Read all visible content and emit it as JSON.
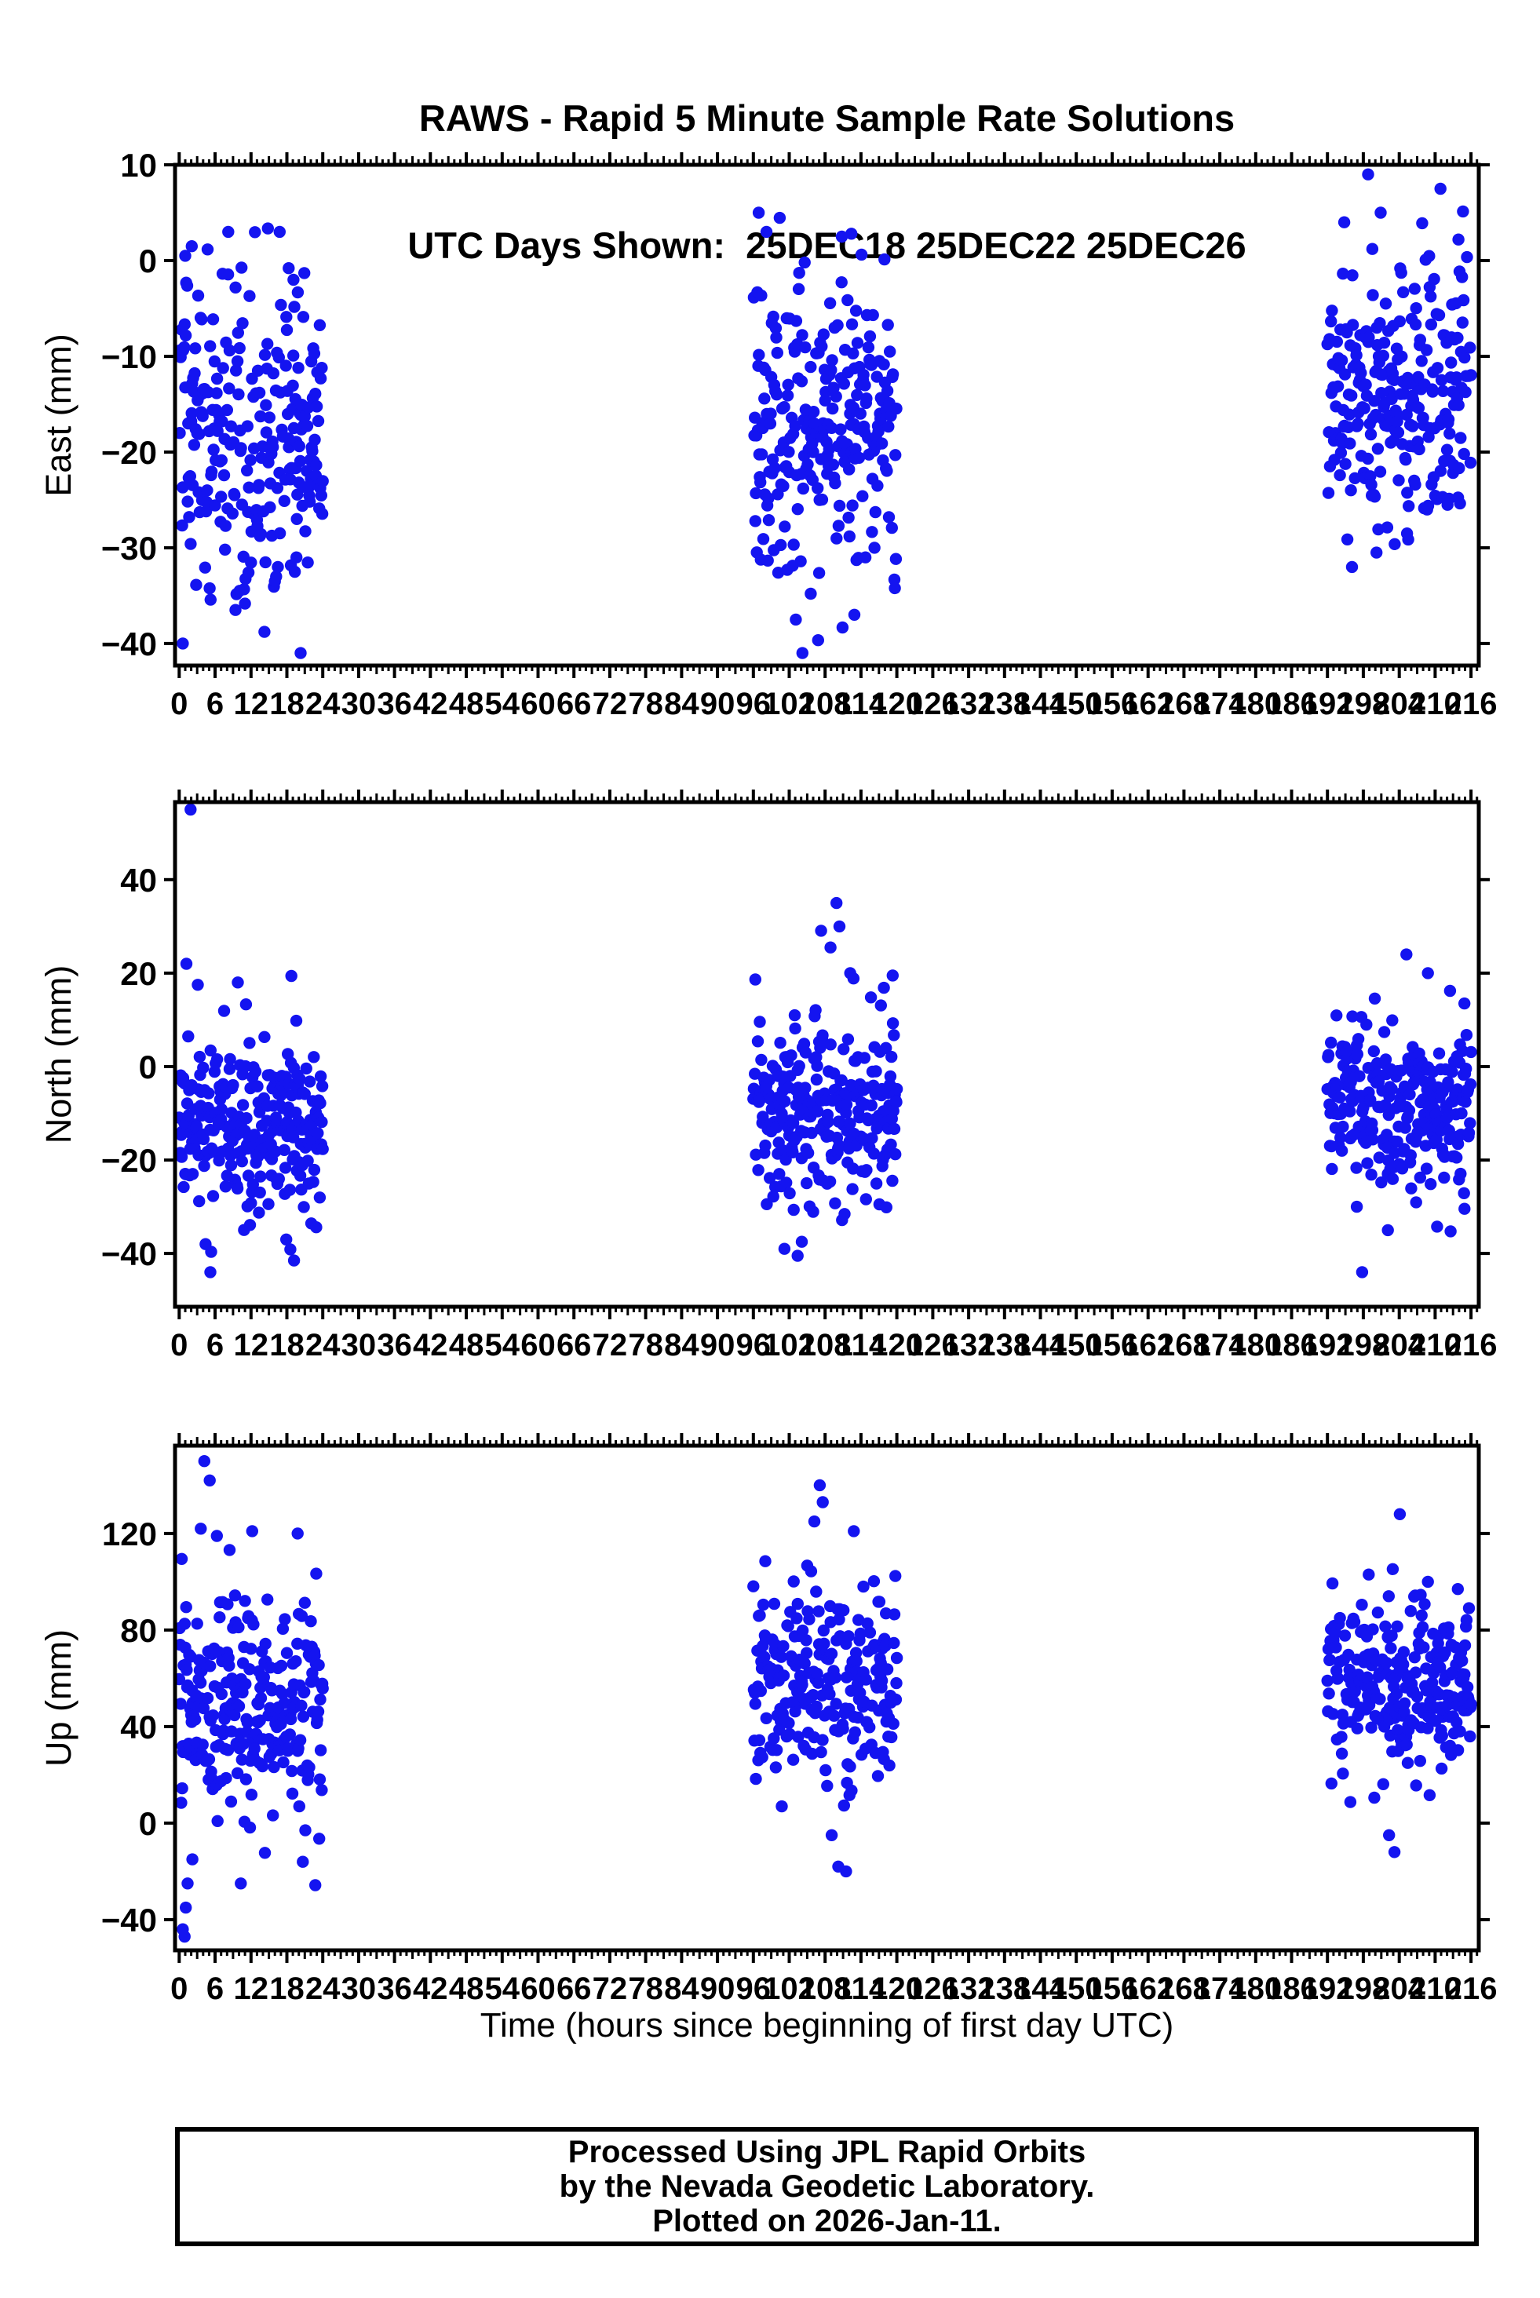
{
  "title": {
    "line1": "RAWS - Rapid 5 Minute Sample Rate Solutions",
    "line2": "UTC Days Shown:  25DEC18 25DEC22 25DEC26"
  },
  "footer": {
    "line1": "Processed Using JPL Rapid Orbits",
    "line2": "by the Nevada Geodetic Laboratory.",
    "line3": "Plotted on 2026-Jan-11."
  },
  "colors": {
    "dot": "#1414f0",
    "frame": "#000000",
    "background": "#ffffff"
  },
  "chart_data": {
    "type": "scatter",
    "station": "RAWS",
    "utc_days_shown": [
      "25DEC18",
      "25DEC22",
      "25DEC26"
    ],
    "xlabel": "Time (hours since beginning of first day UTC)",
    "x_axis": {
      "range": [
        -0.7,
        217.3
      ],
      "major_tick_step": 6,
      "mid_tick_step": 3,
      "minor_tick_step": 1,
      "tick_labels": [
        "0",
        "6",
        "12",
        "18",
        "24",
        "30",
        "36",
        "42",
        "48",
        "54",
        "60",
        "66",
        "72",
        "78",
        "84",
        "90",
        "96",
        "102",
        "108",
        "114",
        "120",
        "126",
        "132",
        "138",
        "144",
        "150",
        "156",
        "162",
        "168",
        "174",
        "180",
        "186",
        "192",
        "198",
        "204",
        "210",
        "216"
      ],
      "tick_values": [
        0,
        6,
        12,
        18,
        24,
        30,
        36,
        42,
        48,
        54,
        60,
        66,
        72,
        78,
        84,
        90,
        96,
        102,
        108,
        114,
        120,
        126,
        132,
        138,
        144,
        150,
        156,
        162,
        168,
        174,
        180,
        186,
        192,
        198,
        204,
        210,
        216
      ]
    },
    "legend": "none",
    "grid": false,
    "marker": {
      "shape": "circle",
      "radius_px": 7.7
    },
    "subplots": [
      {
        "name": "east",
        "ylabel": "East (mm)",
        "ylim": [
          -42.3,
          10
        ],
        "ytick_values": [
          10,
          0,
          -10,
          -20,
          -30,
          -40
        ],
        "ytick_labels": [
          "10",
          "0",
          "−10",
          "−20",
          "−30",
          "−40"
        ],
        "clusters": [
          {
            "x_start": 0,
            "x_end": 24,
            "seed": 11,
            "mean": -18.5,
            "std": 8.5,
            "clamp": [
              -41,
              4
            ],
            "outliers": [
              [
                1.0,
                0.5
              ],
              [
                2.1,
                1.5
              ],
              [
                8.2,
                3
              ],
              [
                16.8,
                3
              ],
              [
                18.3,
                -0.8
              ],
              [
                19.1,
                -2
              ],
              [
                0.6,
                -40
              ],
              [
                20.3,
                -41
              ],
              [
                9.4,
                -36.5
              ],
              [
                10.1,
                -34.5
              ],
              [
                16.2,
                -33
              ],
              [
                19.6,
                -31
              ]
            ]
          },
          {
            "x_start": 96,
            "x_end": 120,
            "seed": 12,
            "mean": -17.5,
            "std": 8,
            "clamp": [
              -41,
              5
            ],
            "outliers": [
              [
                96.9,
                5
              ],
              [
                98.2,
                3
              ],
              [
                110.8,
                2.5
              ],
              [
                112.4,
                2.8
              ],
              [
                104.2,
                -41
              ],
              [
                103.1,
                -37.5
              ],
              [
                112.9,
                -37
              ],
              [
                105.6,
                -34.8
              ]
            ]
          },
          {
            "x_start": 192,
            "x_end": 216,
            "seed": 13,
            "mean": -14.5,
            "std": 6.8,
            "clamp": [
              -32,
              9
            ],
            "outliers": [
              [
                198.8,
                9
              ],
              [
                210.9,
                7.5
              ],
              [
                194.8,
                4
              ],
              [
                200.9,
                5
              ],
              [
                213.9,
                2.2
              ],
              [
                196.1,
                -32
              ],
              [
                200.2,
                -30.5
              ],
              [
                205.3,
                -28.5
              ]
            ]
          }
        ]
      },
      {
        "name": "north",
        "ylabel": "North (mm)",
        "ylim": [
          -51.4,
          56.6
        ],
        "ytick_values": [
          40,
          20,
          0,
          -20,
          -40
        ],
        "ytick_labels": [
          "40",
          "20",
          "0",
          "−20",
          "−40"
        ],
        "clusters": [
          {
            "x_start": 0,
            "x_end": 24,
            "seed": 21,
            "mean": -12,
            "std": 9.5,
            "clamp": [
              -44,
              22
            ],
            "outliers": [
              [
                1.9,
                55
              ],
              [
                1.2,
                22
              ],
              [
                3.1,
                17.5
              ],
              [
                9.8,
                18
              ],
              [
                4.4,
                -38
              ],
              [
                5.2,
                -44
              ],
              [
                17.9,
                -37
              ],
              [
                19.2,
                -41.5
              ]
            ]
          },
          {
            "x_start": 96,
            "x_end": 120,
            "seed": 22,
            "mean": -10,
            "std": 10,
            "clamp": [
              -41,
              30
            ],
            "outliers": [
              [
                109.9,
                35
              ],
              [
                110.4,
                30
              ],
              [
                108.9,
                25.5
              ],
              [
                112.2,
                20
              ],
              [
                119.3,
                19.5
              ],
              [
                101.2,
                -39
              ],
              [
                103.4,
                -40.5
              ],
              [
                104.1,
                -37.5
              ]
            ]
          },
          {
            "x_start": 192,
            "x_end": 216,
            "seed": 23,
            "mean": -8.5,
            "std": 8.5,
            "clamp": [
              -40,
              24
            ],
            "outliers": [
              [
                205.2,
                24
              ],
              [
                208.8,
                20
              ],
              [
                214.9,
                13.5
              ],
              [
                197.8,
                -44
              ],
              [
                202.1,
                -35
              ],
              [
                196.9,
                -30
              ]
            ]
          }
        ]
      },
      {
        "name": "up",
        "ylabel": "Up (mm)",
        "ylim": [
          -52.7,
          156.4
        ],
        "ytick_values": [
          120,
          80,
          40,
          0,
          -40
        ],
        "ytick_labels": [
          "120",
          "80",
          "40",
          "0",
          "−40"
        ],
        "clusters": [
          {
            "x_start": 0,
            "x_end": 24,
            "seed": 31,
            "mean": 48,
            "std": 24,
            "clamp": [
              -45,
              148
            ],
            "outliers": [
              [
                4.2,
                150
              ],
              [
                5.1,
                142
              ],
              [
                3.6,
                122
              ],
              [
                6.3,
                119
              ],
              [
                12.2,
                121
              ],
              [
                19.8,
                120
              ],
              [
                0.9,
                -47
              ],
              [
                1.4,
                -25
              ],
              [
                2.2,
                -15
              ],
              [
                10.3,
                -25
              ],
              [
                0.6,
                -44
              ],
              [
                1.1,
                -35
              ]
            ]
          },
          {
            "x_start": 96,
            "x_end": 120,
            "seed": 32,
            "mean": 55,
            "std": 21,
            "clamp": [
              -20,
              138
            ],
            "outliers": [
              [
                107.1,
                140
              ],
              [
                107.6,
                133
              ],
              [
                106.2,
                125
              ],
              [
                112.8,
                121
              ],
              [
                114.4,
                98
              ],
              [
                110.2,
                -18
              ],
              [
                111.5,
                -20
              ],
              [
                109.1,
                -5
              ]
            ]
          },
          {
            "x_start": 192,
            "x_end": 216,
            "seed": 33,
            "mean": 57,
            "std": 17,
            "clamp": [
              -15,
              128
            ],
            "outliers": [
              [
                204.1,
                128
              ],
              [
                198.9,
                103
              ],
              [
                208.8,
                100
              ],
              [
                213.8,
                97
              ],
              [
                202.3,
                -5
              ],
              [
                203.2,
                -12
              ]
            ]
          }
        ]
      }
    ],
    "sampling": {
      "interval_hours": 0.08333,
      "dropout_fraction": 0.13
    }
  }
}
